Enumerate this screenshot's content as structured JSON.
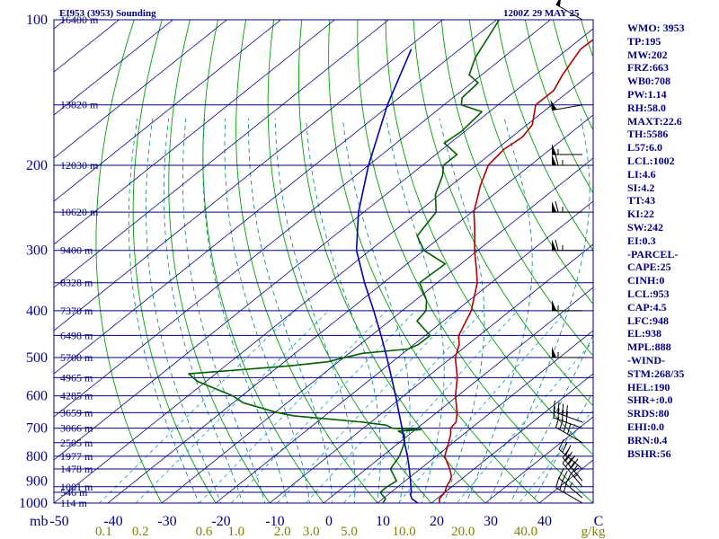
{
  "title": "EI953 (3953) Sounding",
  "valid_time": "1200Z 29 MAY 25",
  "colors": {
    "background": "#ffffff",
    "text": "#000080",
    "isobar": "#000080",
    "isotherm": "#000080",
    "dry_adiabat": "#00a000",
    "moist_adiabat": "#008080",
    "mixing_ratio": "#00a0c0",
    "temperature": "#b00000",
    "dewpoint": "#006000",
    "parcel": "#0000b0",
    "wind_barb": "#000000"
  },
  "indices": [
    "WMO: 3953",
    "TP:195",
    "MW:202",
    "FRZ:663",
    "WB0:708",
    "PW:1.14",
    "RH:58.0",
    "MAXT:22.6",
    "TH:5586",
    "L57:6.0",
    "LCL:1002",
    "LI:4.6",
    "SI:4.2",
    "TT:43",
    "KI:22",
    "SW:242",
    "EI:0.3",
    "-PARCEL-",
    "CAPE:25",
    "CINH:0",
    "LCL:953",
    "CAP:4.5",
    "LFC:948",
    "EL:938",
    "MPL:888",
    "-WIND-",
    "STM:268/35",
    "HEL:190",
    "SHR+:0.0",
    "SRDS:80",
    "EHI:0.0",
    "BRN:0.4",
    "BSHR:56"
  ],
  "chart_data": {
    "type": "line",
    "diagram": "skew-T log-P",
    "xlabel": "",
    "ylabel": "mb",
    "pressure_range_hPa": [
      1000,
      100
    ],
    "temperature_range_C": [
      -50,
      50
    ],
    "pressure_ticks": [
      {
        "p": 100,
        "label": "100"
      },
      {
        "p": 200,
        "label": "200"
      },
      {
        "p": 300,
        "label": "300"
      },
      {
        "p": 400,
        "label": "400"
      },
      {
        "p": 500,
        "label": "500"
      },
      {
        "p": 600,
        "label": "600"
      },
      {
        "p": 700,
        "label": "700"
      },
      {
        "p": 800,
        "label": "800"
      },
      {
        "p": 900,
        "label": "900"
      },
      {
        "p": 1000,
        "label": "1000"
      }
    ],
    "temperature_ticks": [
      {
        "t": -50,
        "label": "-50"
      },
      {
        "t": -40,
        "label": "-40"
      },
      {
        "t": -30,
        "label": "-30"
      },
      {
        "t": -20,
        "label": "-20"
      },
      {
        "t": -10,
        "label": "-10"
      },
      {
        "t": 0,
        "label": "0"
      },
      {
        "t": 10,
        "label": "10"
      },
      {
        "t": 20,
        "label": "20"
      },
      {
        "t": 30,
        "label": "30"
      },
      {
        "t": 40,
        "label": "40"
      },
      {
        "t": 50,
        "label": "C"
      }
    ],
    "mixing_ratio_label_unit": "g/kg",
    "mixing_ratio_labels": [
      {
        "w": 0.1,
        "label": "0.1"
      },
      {
        "w": 0.2,
        "label": "0.2"
      },
      {
        "w": 0.6,
        "label": "0.6"
      },
      {
        "w": 1.0,
        "label": "1.0"
      },
      {
        "w": 2.0,
        "label": "2.0"
      },
      {
        "w": 3.0,
        "label": "3.0"
      },
      {
        "w": 5.0,
        "label": "5.0"
      },
      {
        "w": 10.0,
        "label": "10.0"
      },
      {
        "w": 20.0,
        "label": "20.0"
      },
      {
        "w": 40.0,
        "label": "40.0"
      }
    ],
    "height_levels": [
      {
        "p": 1000,
        "label": "114 m"
      },
      {
        "p": 950,
        "label": "546 m"
      },
      {
        "p": 925,
        "label": "1001 m"
      },
      {
        "p": 850,
        "label": "1478 m"
      },
      {
        "p": 800,
        "label": "1977 m"
      },
      {
        "p": 750,
        "label": "2505 m"
      },
      {
        "p": 700,
        "label": "3066 m"
      },
      {
        "p": 650,
        "label": "3659 m"
      },
      {
        "p": 600,
        "label": "4285 m"
      },
      {
        "p": 550,
        "label": "4965 m"
      },
      {
        "p": 500,
        "label": "5700 m"
      },
      {
        "p": 450,
        "label": "6498 m"
      },
      {
        "p": 400,
        "label": "7370 m"
      },
      {
        "p": 350,
        "label": "8328 m"
      },
      {
        "p": 300,
        "label": "9400 m"
      },
      {
        "p": 250,
        "label": "10620 m"
      },
      {
        "p": 200,
        "label": "12030 m"
      },
      {
        "p": 150,
        "label": "13820 m"
      },
      {
        "p": 100,
        "label": "16400 m"
      }
    ],
    "series": [
      {
        "key": "temperature",
        "points": [
          [
            1000,
            21.5
          ],
          [
            980,
            20.5
          ],
          [
            950,
            20.0
          ],
          [
            925,
            19.0
          ],
          [
            900,
            18.3
          ],
          [
            880,
            17.5
          ],
          [
            850,
            15.5
          ],
          [
            800,
            11.6
          ],
          [
            750,
            9.2
          ],
          [
            720,
            7.6
          ],
          [
            700,
            6.2
          ],
          [
            680,
            5.8
          ],
          [
            650,
            3.8
          ],
          [
            600,
            -0.4
          ],
          [
            550,
            -4.3
          ],
          [
            500,
            -9.3
          ],
          [
            470,
            -11.6
          ],
          [
            450,
            -13.8
          ],
          [
            420,
            -15.8
          ],
          [
            400,
            -17.2
          ],
          [
            350,
            -22.6
          ],
          [
            330,
            -25.6
          ],
          [
            300,
            -30.6
          ],
          [
            270,
            -35.7
          ],
          [
            250,
            -39.6
          ],
          [
            220,
            -44.6
          ],
          [
            200,
            -47.8
          ],
          [
            185,
            -48.6
          ],
          [
            175,
            -48.0
          ],
          [
            165,
            -49.0
          ],
          [
            150,
            -53.0
          ],
          [
            140,
            -53.0
          ],
          [
            130,
            -55.0
          ],
          [
            115,
            -57.6
          ],
          [
            100,
            -57.2
          ]
        ]
      },
      {
        "key": "dewpoint",
        "points": [
          [
            1000,
            11.0
          ],
          [
            980,
            10.5
          ],
          [
            950,
            8.0
          ],
          [
            925,
            8.0
          ],
          [
            900,
            8.4
          ],
          [
            850,
            4.5
          ],
          [
            800,
            3.2
          ],
          [
            750,
            1.0
          ],
          [
            720,
            -1.0
          ],
          [
            710,
            -2.8
          ],
          [
            705,
            1.0
          ],
          [
            700,
            -4.6
          ],
          [
            690,
            -6.4
          ],
          [
            680,
            -11.6
          ],
          [
            660,
            -25.7
          ],
          [
            650,
            -29.5
          ],
          [
            620,
            -38.2
          ],
          [
            600,
            -41.7
          ],
          [
            560,
            -51.6
          ],
          [
            540,
            -55.0
          ],
          [
            530,
            -46.5
          ],
          [
            520,
            -38.0
          ],
          [
            510,
            -32.0
          ],
          [
            500,
            -29.8
          ],
          [
            490,
            -27.5
          ],
          [
            480,
            -20.0
          ],
          [
            470,
            -19.2
          ],
          [
            450,
            -19.1
          ],
          [
            420,
            -24.9
          ],
          [
            400,
            -25.6
          ],
          [
            380,
            -28.0
          ],
          [
            350,
            -33.3
          ],
          [
            320,
            -32.9
          ],
          [
            300,
            -40.0
          ],
          [
            280,
            -44.6
          ],
          [
            250,
            -46.6
          ],
          [
            230,
            -50.8
          ],
          [
            210,
            -53.9
          ],
          [
            200,
            -56.1
          ],
          [
            190,
            -56.1
          ],
          [
            180,
            -61.1
          ],
          [
            170,
            -60.6
          ],
          [
            155,
            -61.4
          ],
          [
            150,
            -66.8
          ],
          [
            145,
            -68.3
          ],
          [
            135,
            -68.8
          ],
          [
            130,
            -72.3
          ],
          [
            120,
            -75.1
          ],
          [
            100,
            -79.5
          ]
        ]
      },
      {
        "key": "parcel",
        "points": [
          [
            1000,
            17.5
          ],
          [
            980,
            15.4
          ],
          [
            960,
            14.1
          ],
          [
            950,
            13.8
          ],
          [
            900,
            11.0
          ],
          [
            850,
            8.0
          ],
          [
            800,
            4.7
          ],
          [
            750,
            1.0
          ],
          [
            700,
            -2.8
          ],
          [
            650,
            -7.0
          ],
          [
            600,
            -11.5
          ],
          [
            550,
            -16.5
          ],
          [
            500,
            -22.0
          ],
          [
            450,
            -28.2
          ],
          [
            400,
            -35.3
          ],
          [
            350,
            -43.5
          ],
          [
            300,
            -52.5
          ],
          [
            250,
            -61.0
          ],
          [
            200,
            -70.0
          ],
          [
            150,
            -80.5
          ],
          [
            115,
            -89.0
          ]
        ]
      }
    ],
    "wind_barbs": [
      {
        "p": 1000,
        "dir": 300,
        "kt": 30
      },
      {
        "p": 975,
        "dir": 310,
        "kt": 35
      },
      {
        "p": 925,
        "dir": 320,
        "kt": 45
      },
      {
        "p": 900,
        "dir": 320,
        "kt": 45
      },
      {
        "p": 850,
        "dir": 310,
        "kt": 30
      },
      {
        "p": 750,
        "dir": 300,
        "kt": 40
      },
      {
        "p": 700,
        "dir": 290,
        "kt": 40
      },
      {
        "p": 680,
        "dir": 290,
        "kt": 40
      },
      {
        "p": 500,
        "dir": 270,
        "kt": 55
      },
      {
        "p": 400,
        "dir": 270,
        "kt": 55
      },
      {
        "p": 300,
        "dir": 270,
        "kt": 65
      },
      {
        "p": 250,
        "dir": 270,
        "kt": 65
      },
      {
        "p": 200,
        "dir": 270,
        "kt": 65
      },
      {
        "p": 190,
        "dir": 270,
        "kt": 55
      },
      {
        "p": 150,
        "dir": 260,
        "kt": 50
      },
      {
        "p": 100,
        "dir": 300,
        "kt": 50
      }
    ]
  }
}
